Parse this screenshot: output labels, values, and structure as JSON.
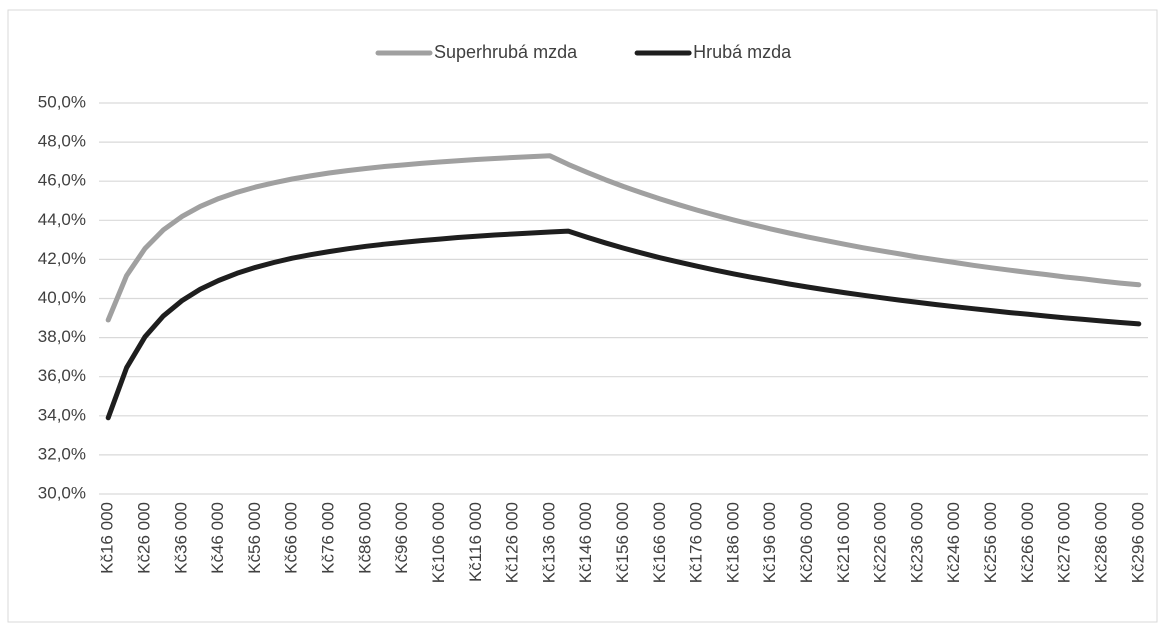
{
  "chart_data": {
    "type": "line",
    "categories": [
      "Kč16 000",
      null,
      "Kč26 000",
      null,
      "Kč36 000",
      null,
      "Kč46 000",
      null,
      "Kč56 000",
      null,
      "Kč66 000",
      null,
      "Kč76 000",
      null,
      "Kč86 000",
      null,
      "Kč96 000",
      null,
      "Kč106 000",
      null,
      "Kč116 000",
      null,
      "Kč126 000",
      null,
      "Kč136 000",
      null,
      "Kč146 000",
      null,
      "Kč156 000",
      null,
      "Kč166 000",
      null,
      "Kč176 000",
      null,
      "Kč186 000",
      null,
      "Kč196 000",
      null,
      "Kč206 000",
      null,
      "Kč216 000",
      null,
      "Kč226 000",
      null,
      "Kč236 000",
      null,
      "Kč246 000",
      null,
      "Kč256 000",
      null,
      "Kč266 000",
      null,
      "Kč276 000",
      null,
      "Kč286 000",
      null,
      "Kč296 000"
    ],
    "series": [
      {
        "name": "Superhrubá mzda",
        "color": "#a0a0a0",
        "values": [
          38.9,
          41.17,
          42.56,
          43.51,
          44.19,
          44.71,
          45.11,
          45.43,
          45.7,
          45.92,
          46.11,
          46.27,
          46.42,
          46.54,
          46.65,
          46.75,
          46.83,
          46.91,
          46.98,
          47.05,
          47.11,
          47.16,
          47.21,
          47.26,
          47.3,
          46.86,
          46.46,
          46.08,
          45.73,
          45.4,
          45.09,
          44.8,
          44.52,
          44.26,
          44.01,
          43.78,
          43.56,
          43.35,
          43.15,
          42.96,
          42.78,
          42.6,
          42.44,
          42.28,
          42.12,
          41.98,
          41.84,
          41.7,
          41.57,
          41.45,
          41.33,
          41.22,
          41.1,
          41.0,
          40.89,
          40.79,
          40.7
        ]
      },
      {
        "name": "Hrubá mzda",
        "color": "#1e1e1e",
        "values": [
          33.9,
          36.46,
          38.04,
          39.11,
          39.88,
          40.47,
          40.92,
          41.29,
          41.59,
          41.84,
          42.06,
          42.24,
          42.4,
          42.54,
          42.67,
          42.78,
          42.87,
          42.96,
          43.04,
          43.12,
          43.18,
          43.25,
          43.3,
          43.35,
          43.4,
          43.45,
          43.14,
          42.85,
          42.58,
          42.32,
          42.08,
          41.86,
          41.65,
          41.45,
          41.26,
          41.08,
          40.91,
          40.74,
          40.59,
          40.44,
          40.3,
          40.17,
          40.04,
          39.92,
          39.8,
          39.69,
          39.58,
          39.48,
          39.38,
          39.28,
          39.19,
          39.1,
          39.01,
          38.93,
          38.85,
          38.77,
          38.7
        ]
      }
    ],
    "ylim": [
      30,
      50
    ],
    "yticks": [
      {
        "value": 30,
        "label": "30,0%"
      },
      {
        "value": 32,
        "label": "32,0%"
      },
      {
        "value": 34,
        "label": "34,0%"
      },
      {
        "value": 36,
        "label": "36,0%"
      },
      {
        "value": 38,
        "label": "38,0%"
      },
      {
        "value": 40,
        "label": "40,0%"
      },
      {
        "value": 42,
        "label": "42,0%"
      },
      {
        "value": 44,
        "label": "44,0%"
      },
      {
        "value": 46,
        "label": "46,0%"
      },
      {
        "value": 48,
        "label": "48,0%"
      },
      {
        "value": 50,
        "label": "50,0%"
      }
    ],
    "grid": true,
    "legend": "top"
  }
}
